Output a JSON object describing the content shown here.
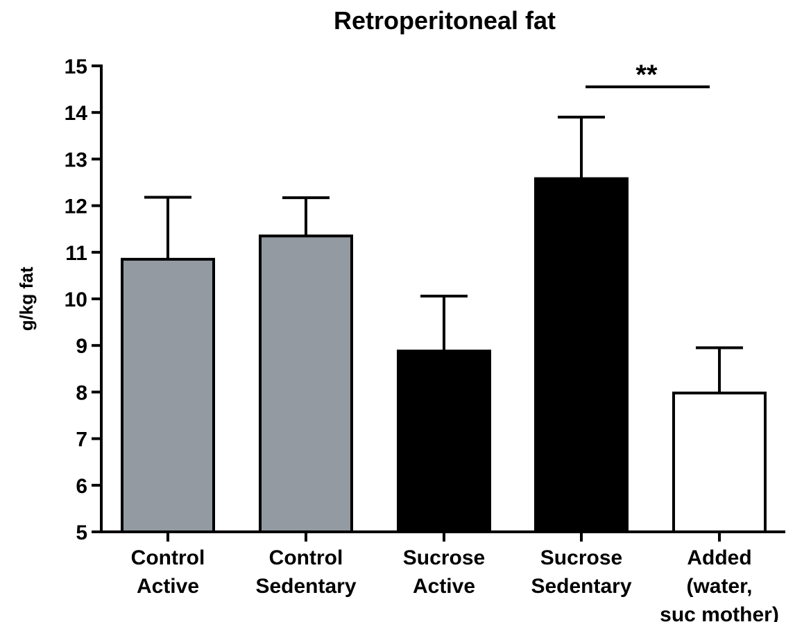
{
  "chart_data": {
    "type": "bar",
    "title": "Retroperitoneal fat",
    "ylabel": "g/kg fat",
    "xlabel": "",
    "ylim": [
      5,
      15
    ],
    "yticks": [
      5,
      6,
      7,
      8,
      9,
      10,
      11,
      12,
      13,
      14,
      15
    ],
    "categories": [
      [
        "Control",
        "Active"
      ],
      [
        "Control",
        "Sedentary"
      ],
      [
        "Sucrose",
        "Active"
      ],
      [
        "Sucrose",
        "Sedentary"
      ],
      [
        "Added",
        "(water,",
        "suc mother)"
      ]
    ],
    "values": [
      10.85,
      11.35,
      8.88,
      12.58,
      7.98
    ],
    "errors": [
      1.33,
      0.82,
      1.18,
      1.32,
      0.97
    ],
    "bar_colors": [
      "#949aa1",
      "#949aa1",
      "#000000",
      "#000000",
      "#ffffff"
    ],
    "significance": {
      "label": "**",
      "from_category": 3,
      "to_category": 4,
      "y": 14.55
    },
    "grid": false,
    "legend": "none"
  }
}
